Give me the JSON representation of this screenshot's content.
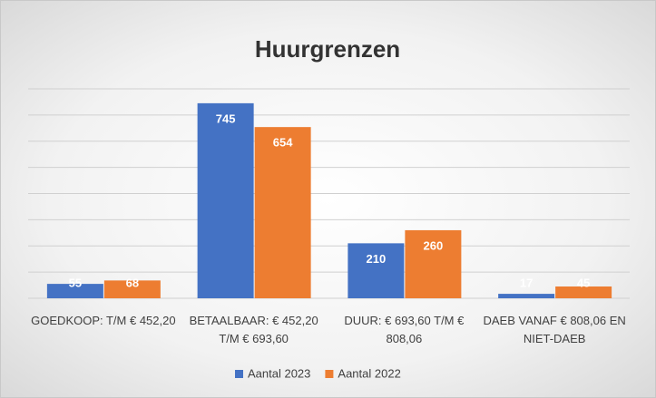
{
  "chart_data": {
    "type": "bar",
    "title": "Huurgrenzen",
    "categories": [
      "GOEDKOOP: T/M € 452,20",
      "BETAALBAAR: € 452,20 T/M € 693,60",
      "DUUR: € 693,60 T/M € 808,06",
      "DAEB VANAF € 808,06 EN NIET-DAEB"
    ],
    "series": [
      {
        "name": "Aantal 2023",
        "color": "#4472c4",
        "values": [
          55,
          745,
          210,
          17
        ]
      },
      {
        "name": "Aantal 2022",
        "color": "#ed7d31",
        "values": [
          68,
          654,
          260,
          45
        ]
      }
    ],
    "ylim": [
      0,
      800
    ],
    "yticks": [
      0,
      100,
      200,
      300,
      400,
      500,
      600,
      700,
      800
    ],
    "grid": true,
    "legend": "bottom"
  }
}
